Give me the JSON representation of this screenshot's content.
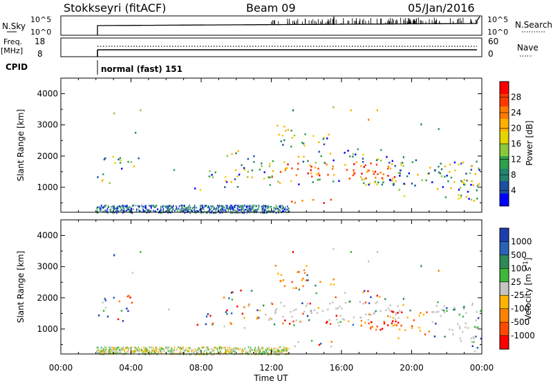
{
  "header": {
    "station": "Stokkseyri (fitACF)",
    "beam": "Beam 09",
    "date": "05/Jan/2016"
  },
  "panels": {
    "nsky_label": "N.Sky",
    "nsky_ticks": [
      "10^5",
      "10^0"
    ],
    "nsearch_label": "N.Search",
    "nsearch_ticks": [
      "10^5",
      "10^0"
    ],
    "freq_label": "Freq.",
    "freq_unit": "[MHz]",
    "freq_ticks": [
      "18",
      "8"
    ],
    "nave_label": "Nave",
    "nave_ticks": [
      "60",
      "0"
    ],
    "cpid_label": "CPID",
    "cpid_text": "normal (fast) 151"
  },
  "chart_data": [
    {
      "type": "heatmap",
      "name": "power",
      "ylabel": "Slant Range [km]",
      "yticks": [
        "4000",
        "3000",
        "2000",
        "1000"
      ],
      "ylim": [
        200,
        4500
      ],
      "xlim": [
        0,
        24
      ],
      "colorbar_label": "Power [dB]",
      "colorbar_ticks": [
        "28",
        "24",
        "20",
        "16",
        "12",
        "8",
        "4"
      ],
      "colorbar_colors": [
        "#ff0000",
        "#ff3a00",
        "#ff7a00",
        "#ffb000",
        "#e6d400",
        "#8cc83c",
        "#2fa04a",
        "#23826c",
        "#1e4fa0",
        "#0000ff"
      ]
    },
    {
      "type": "heatmap",
      "name": "velocity",
      "ylabel": "Slant Range [km]",
      "yticks": [
        "4000",
        "3000",
        "2000",
        "1000"
      ],
      "ylim": [
        200,
        4500
      ],
      "xlim": [
        0,
        24
      ],
      "colorbar_label": "Velocity [m s^-1]",
      "colorbar_ticks": [
        "1000",
        "500",
        "100",
        "25",
        "-25",
        "-100",
        "-500",
        "-1000"
      ],
      "colorbar_colors": [
        "#1c3fb0",
        "#2a62b8",
        "#2f8a58",
        "#3db83a",
        "#c4c4c0",
        "#ffb400",
        "#ff8200",
        "#ff4a00",
        "#ff0000"
      ]
    }
  ],
  "xaxis": {
    "ticks": [
      "00:00",
      "04:00",
      "08:00",
      "12:00",
      "16:00",
      "20:00",
      "00:00"
    ],
    "label": "Time UT"
  }
}
